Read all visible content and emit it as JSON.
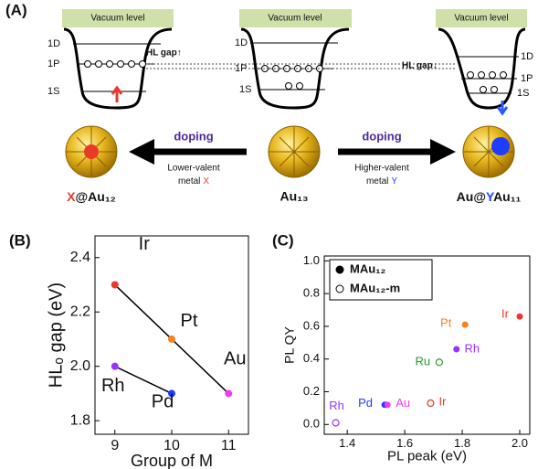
{
  "diagram": {
    "panel_label": "(A)",
    "vacuum_level": [
      "Vacuum level",
      "Vacuum level",
      "Vacuum level"
    ],
    "levels": [
      [
        "1D",
        "1P",
        "1S"
      ],
      [
        "1D",
        "1P",
        "1S"
      ],
      [
        "1D",
        "1P",
        "1S"
      ]
    ],
    "hl_gap_up": "HL gap↑",
    "hl_gap_down": "HL gap↓",
    "left_doping": "doping",
    "left_note": [
      "Lower-valent",
      "metal",
      "X"
    ],
    "right_doping": "doping",
    "right_note": [
      "Higher-valent",
      "metal",
      "Y"
    ],
    "clusters": [
      [
        "X",
        "@Au₁₂"
      ],
      [
        "Au₁₃"
      ],
      [
        "Au@",
        "Y",
        "Au₁₁"
      ]
    ]
  },
  "chart_data": [
    {
      "type": "line",
      "panel_label": "(B)",
      "x_label": "Group of M",
      "y_label": "HLₒ gap (eV)",
      "xlim": [
        8.65,
        11.35
      ],
      "ylim": [
        1.75,
        2.48
      ],
      "xticks": [
        9,
        10,
        11
      ],
      "yticks": [
        1.8,
        {
          "value": 2,
          "label": "2.0"
        },
        2.2,
        2.4
      ],
      "series": [
        {
          "color": "#000000",
          "x": [
            9,
            10,
            11
          ],
          "values": [
            2.3,
            2.1,
            1.9
          ],
          "point_labels": [
            "Ir",
            "Pt",
            "Au"
          ],
          "point_colors": [
            "#e8392a",
            "#f58220",
            "#f03cf0"
          ]
        },
        {
          "color": "#000000",
          "x": [
            9,
            10
          ],
          "values": [
            2.0,
            1.9
          ],
          "point_labels": [
            "Rh",
            "Pd"
          ],
          "point_colors": [
            "#9b30ff",
            "#1f3cff"
          ]
        }
      ]
    },
    {
      "type": "scatter",
      "panel_label": "(C)",
      "x_label": "PL peak (eV)",
      "y_label": "PL QY",
      "xlim": [
        1.32,
        2.035
      ],
      "ylim": [
        -0.06,
        1.03
      ],
      "xticks": [
        1.4,
        1.6,
        1.8,
        {
          "value": 2,
          "label": "2.0"
        }
      ],
      "yticks": [
        {
          "value": 0,
          "label": "0.0"
        },
        0.2,
        0.4,
        0.6,
        0.8,
        {
          "value": 1,
          "label": "1.0"
        }
      ],
      "legend": "upper left",
      "series": [
        {
          "name": "MAu₁₂",
          "marker": "filled",
          "x": [
            2.0,
            1.81,
            1.78,
            1.53,
            1.54
          ],
          "values": [
            0.66,
            0.61,
            0.46,
            0.12,
            0.12
          ],
          "point_labels": [
            "Ir",
            "Pt",
            "Rh",
            "Pd",
            "Au"
          ],
          "point_colors": [
            "#e8392a",
            "#f58220",
            "#9b30ff",
            "#1f3cff",
            "#f03cf0"
          ]
        },
        {
          "name": "MAu₁₂-m",
          "marker": "open",
          "x": [
            1.72,
            1.69,
            1.36
          ],
          "values": [
            0.38,
            0.13,
            0.01
          ],
          "point_labels": [
            "Ru",
            "Ir",
            "Rh"
          ],
          "point_colors": [
            "#2a9d2a",
            "#e8392a",
            "#9b30ff"
          ]
        }
      ]
    }
  ]
}
